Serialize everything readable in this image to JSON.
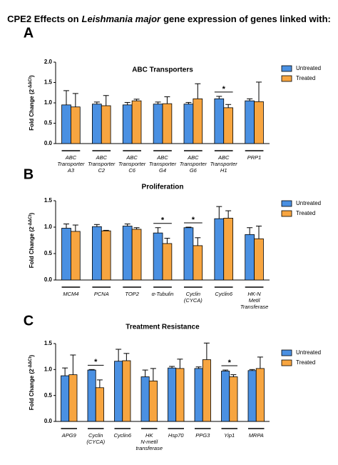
{
  "header": {
    "title_start": "CPE2 Effects on",
    "title_italic": "Leishmania major",
    "title_end": "gene expression of genes linked with:"
  },
  "chart_data": [
    {
      "type": "bar",
      "panel_label": "A",
      "title": "ABC Transporters",
      "ylabel": "Fold Change (2",
      "ylabel_sup": "-ΔΔCt",
      "ylabel_end": ")",
      "categories": [
        [
          "ABC",
          "Transporter",
          "A3"
        ],
        [
          "ABC",
          "Transporter",
          "C2"
        ],
        [
          "ABC",
          "Transporter",
          "C6"
        ],
        [
          "ABC",
          "Transporter",
          "G4"
        ],
        [
          "ABC",
          "Transporter",
          "G6"
        ],
        [
          "ABC",
          "Transporter",
          "H1"
        ],
        [
          "PRP1"
        ]
      ],
      "series": [
        {
          "name": "Untreated",
          "color": "#4a90e2",
          "values": [
            0.95,
            0.97,
            0.95,
            0.97,
            0.97,
            1.1,
            1.05
          ],
          "errors": [
            0.35,
            0.05,
            0.06,
            0.05,
            0.04,
            0.06,
            0.05
          ]
        },
        {
          "name": "Treated",
          "color": "#f7a540",
          "values": [
            0.9,
            0.93,
            1.05,
            0.98,
            1.1,
            0.88,
            1.03
          ],
          "errors": [
            0.33,
            0.25,
            0.04,
            0.17,
            0.37,
            0.08,
            0.48
          ]
        }
      ],
      "significant": [
        false,
        false,
        false,
        false,
        false,
        true,
        false
      ],
      "significance_label": "*",
      "ylim": [
        0,
        2
      ],
      "yticks": [
        {
          "value": 0,
          "label": "0.0"
        },
        {
          "value": 0.5,
          "label": "0.5"
        },
        {
          "value": 1,
          "label": "1.0"
        },
        {
          "value": 1.5,
          "label": "1.5"
        },
        {
          "value": 2,
          "label": "2.0"
        }
      ],
      "legend": "upper right"
    },
    {
      "type": "bar",
      "panel_label": "B",
      "title": "Proliferation",
      "ylabel": "Fold Change (2",
      "ylabel_sup": "-ΔΔCt",
      "ylabel_end": ")",
      "categories": [
        [
          "MCM4"
        ],
        [
          "PCNA"
        ],
        [
          "TOP2"
        ],
        [
          "α-Tubulin"
        ],
        [
          "Cyclin",
          "(CYCA)"
        ],
        [
          "Cyclin6"
        ],
        [
          "HK-N",
          "Metil",
          "Transferase"
        ]
      ],
      "series": [
        {
          "name": "Untreated",
          "color": "#4a90e2",
          "values": [
            0.98,
            1.01,
            1.02,
            0.89,
            0.99,
            1.16,
            0.86
          ],
          "errors": [
            0.08,
            0.04,
            0.04,
            0.1,
            0.01,
            0.23,
            0.13
          ]
        },
        {
          "name": "Treated",
          "color": "#f7a540",
          "values": [
            0.92,
            0.93,
            0.96,
            0.69,
            0.65,
            1.17,
            0.78
          ],
          "errors": [
            0.12,
            0.01,
            0.03,
            0.1,
            0.15,
            0.14,
            0.24
          ]
        }
      ],
      "significant": [
        false,
        false,
        false,
        true,
        true,
        false,
        false
      ],
      "significance_label": "*",
      "ylim": [
        0,
        1.5
      ],
      "yticks": [
        {
          "value": 0,
          "label": "0.0"
        },
        {
          "value": 0.5,
          "label": "0.5"
        },
        {
          "value": 1,
          "label": "1.0"
        },
        {
          "value": 1.5,
          "label": "1.5"
        }
      ],
      "legend": "upper right"
    },
    {
      "type": "bar",
      "panel_label": "C",
      "title": "Treatment Resistance",
      "ylabel": "Fold Change (2",
      "ylabel_sup": "-ΔΔCt",
      "ylabel_end": ")",
      "categories": [
        [
          "APG9"
        ],
        [
          "Cyclin",
          "(CYCA)"
        ],
        [
          "Cyclin6"
        ],
        [
          "HK",
          "N-metil",
          "transferase"
        ],
        [
          "Hsp70"
        ],
        [
          "PPG3"
        ],
        [
          "Yip1"
        ],
        [
          "MRPA"
        ]
      ],
      "series": [
        {
          "name": "Untreated",
          "color": "#4a90e2",
          "values": [
            0.88,
            0.99,
            1.16,
            0.86,
            1.03,
            1.02,
            0.97,
            0.98
          ],
          "errors": [
            0.15,
            0.01,
            0.23,
            0.13,
            0.03,
            0.03,
            0.02,
            0.02
          ]
        },
        {
          "name": "Treated",
          "color": "#f7a540",
          "values": [
            0.9,
            0.65,
            1.17,
            0.78,
            1.02,
            1.19,
            0.86,
            1.02
          ],
          "errors": [
            0.38,
            0.15,
            0.14,
            0.24,
            0.18,
            0.32,
            0.04,
            0.22
          ]
        }
      ],
      "significant": [
        false,
        true,
        false,
        false,
        false,
        false,
        true,
        false
      ],
      "significance_label": "*",
      "ylim": [
        0,
        1.5
      ],
      "yticks": [
        {
          "value": 0,
          "label": "0.0"
        },
        {
          "value": 0.5,
          "label": "0.5"
        },
        {
          "value": 1,
          "label": "1.0"
        },
        {
          "value": 1.5,
          "label": "1.5"
        }
      ],
      "legend": "upper right"
    }
  ]
}
